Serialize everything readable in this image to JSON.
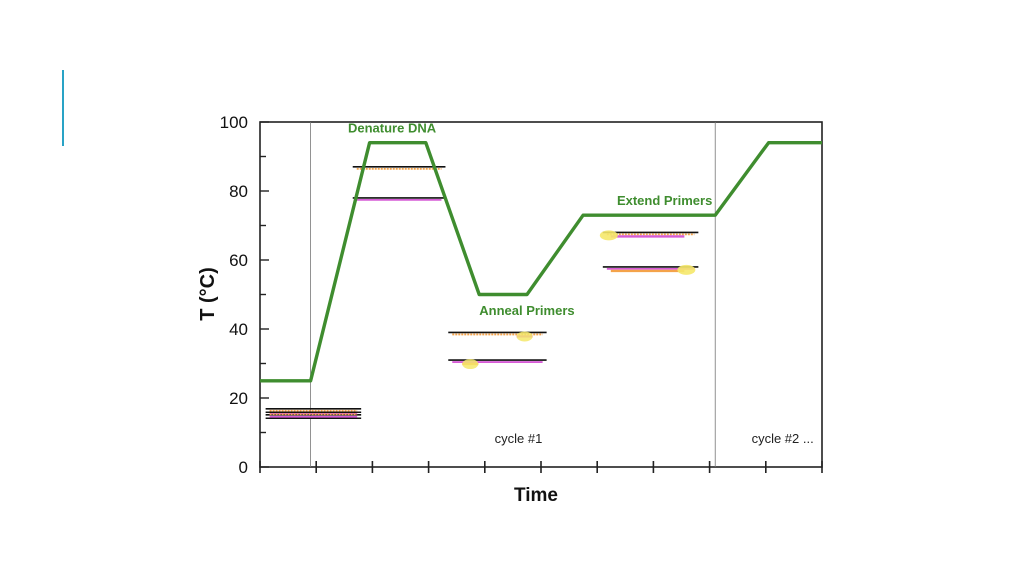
{
  "chart_data": {
    "type": "line",
    "title": "",
    "xlabel": "Time",
    "ylabel": "T (°C)",
    "ylim": [
      0,
      100
    ],
    "yticks": [
      0,
      20,
      40,
      60,
      80,
      100
    ],
    "xlim": [
      0,
      10
    ],
    "xticks": [
      0,
      1,
      2,
      3,
      4,
      5,
      6,
      7,
      8,
      9,
      10
    ],
    "grid": false,
    "series": [
      {
        "color": "#3f8d2f",
        "x": [
          0,
          0.9,
          1.95,
          2.95,
          3.9,
          4.75,
          5.75,
          8.1,
          9.05,
          10
        ],
        "y": [
          25,
          25,
          94,
          94,
          50,
          50,
          73,
          73,
          94,
          94
        ]
      }
    ],
    "cycle_dividers": [
      0.9,
      8.1
    ],
    "annotations": [
      {
        "text": "Denature DNA",
        "x": 2.35,
        "y": 97
      },
      {
        "text": "Anneal Primers",
        "x": 4.75,
        "y": 44
      },
      {
        "text": "Extend Primers",
        "x": 7.2,
        "y": 76
      }
    ],
    "cycle_labels": [
      {
        "text": "cycle #1",
        "x": 4.6,
        "y": 7
      },
      {
        "text": "cycle #2 ...",
        "x": 9.3,
        "y": 7
      }
    ],
    "dna_illustrations": [
      {
        "stage": "start",
        "x0": 0.1,
        "x1": 1.8,
        "y": [
          16,
          15
        ],
        "strand": "double"
      },
      {
        "stage": "denature",
        "x0": 1.65,
        "x1": 3.3,
        "y": [
          87
        ],
        "strand": "top"
      },
      {
        "stage": "denature",
        "x0": 1.65,
        "x1": 3.3,
        "y": [
          78
        ],
        "strand": "bottom"
      },
      {
        "stage": "anneal",
        "x0": 3.35,
        "x1": 5.1,
        "y": [
          39
        ],
        "strand": "top-primer"
      },
      {
        "stage": "anneal",
        "x0": 3.35,
        "x1": 5.1,
        "y": [
          31
        ],
        "strand": "bottom-primer"
      },
      {
        "stage": "extend",
        "x0": 6.1,
        "x1": 7.8,
        "y": [
          68
        ],
        "strand": "top-extend"
      },
      {
        "stage": "extend",
        "x0": 6.1,
        "x1": 7.8,
        "y": [
          58
        ],
        "strand": "bottom-extend"
      }
    ],
    "colors": {
      "line": "#3f8d2f",
      "annotation": "#3f8d2f",
      "strand_orange": "#f4a34a",
      "strand_pink": "#d65bd6",
      "polymerase": "#f5e86a",
      "accent": "#29a3c6"
    }
  }
}
